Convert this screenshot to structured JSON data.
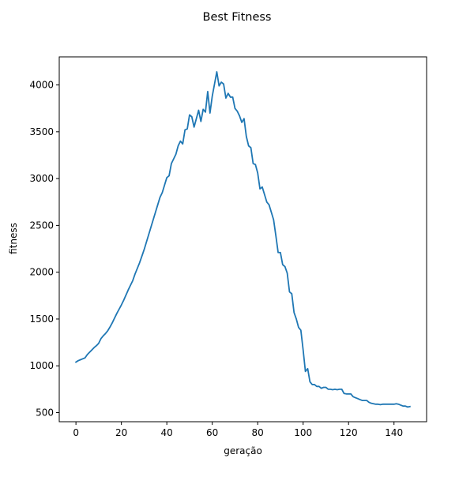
{
  "chart_data": {
    "type": "line",
    "title": "Best Fitness",
    "xlabel": "geração",
    "ylabel": "fitness",
    "xlim": [
      -7.35,
      154.35
    ],
    "ylim": [
      403,
      4300
    ],
    "xticks": [
      0,
      20,
      40,
      60,
      80,
      100,
      120,
      140
    ],
    "yticks": [
      500,
      1000,
      1500,
      2000,
      2500,
      3000,
      3500,
      4000
    ],
    "grid": false,
    "legend": "none",
    "series": [
      {
        "color": "#1f77b4",
        "x": [
          0,
          1,
          2,
          3,
          4,
          5,
          6,
          7,
          8,
          9,
          10,
          11,
          12,
          13,
          14,
          15,
          16,
          17,
          18,
          19,
          20,
          21,
          22,
          23,
          24,
          25,
          26,
          27,
          28,
          29,
          30,
          31,
          32,
          33,
          34,
          35,
          36,
          37,
          38,
          39,
          40,
          41,
          42,
          43,
          44,
          45,
          46,
          47,
          48,
          49,
          50,
          51,
          52,
          53,
          54,
          55,
          56,
          57,
          58,
          59,
          60,
          61,
          62,
          63,
          64,
          65,
          66,
          67,
          68,
          69,
          70,
          71,
          72,
          73,
          74,
          75,
          76,
          77,
          78,
          79,
          80,
          81,
          82,
          83,
          84,
          85,
          86,
          87,
          88,
          89,
          90,
          91,
          92,
          93,
          94,
          95,
          96,
          97,
          98,
          99,
          100,
          101,
          102,
          103,
          104,
          105,
          106,
          107,
          108,
          109,
          110,
          111,
          112,
          113,
          114,
          115,
          116,
          117,
          118,
          119,
          120,
          121,
          122,
          123,
          124,
          125,
          126,
          127,
          128,
          129,
          130,
          131,
          132,
          133,
          134,
          135,
          136,
          137,
          138,
          139,
          140,
          141,
          142,
          143,
          144,
          145,
          146,
          147
        ],
        "values": [
          1040,
          1055,
          1065,
          1075,
          1085,
          1120,
          1145,
          1170,
          1195,
          1215,
          1240,
          1290,
          1320,
          1345,
          1375,
          1415,
          1460,
          1510,
          1560,
          1605,
          1650,
          1700,
          1755,
          1810,
          1860,
          1910,
          1980,
          2040,
          2100,
          2170,
          2240,
          2320,
          2400,
          2480,
          2560,
          2640,
          2720,
          2800,
          2850,
          2930,
          3010,
          3030,
          3160,
          3210,
          3260,
          3350,
          3400,
          3370,
          3520,
          3530,
          3680,
          3660,
          3550,
          3640,
          3730,
          3610,
          3740,
          3710,
          3930,
          3700,
          3880,
          4010,
          4140,
          3990,
          4030,
          4010,
          3860,
          3910,
          3870,
          3870,
          3750,
          3720,
          3670,
          3600,
          3640,
          3450,
          3350,
          3330,
          3160,
          3150,
          3060,
          2890,
          2910,
          2830,
          2750,
          2720,
          2640,
          2560,
          2390,
          2210,
          2210,
          2080,
          2060,
          1990,
          1790,
          1770,
          1570,
          1500,
          1410,
          1380,
          1170,
          940,
          970,
          830,
          800,
          800,
          780,
          780,
          760,
          770,
          770,
          750,
          750,
          745,
          750,
          745,
          750,
          750,
          705,
          700,
          700,
          700,
          670,
          660,
          650,
          640,
          630,
          630,
          630,
          610,
          600,
          595,
          590,
          590,
          585,
          590,
          590,
          590,
          590,
          590,
          590,
          595,
          590,
          580,
          570,
          570,
          560,
          565
        ]
      }
    ]
  }
}
